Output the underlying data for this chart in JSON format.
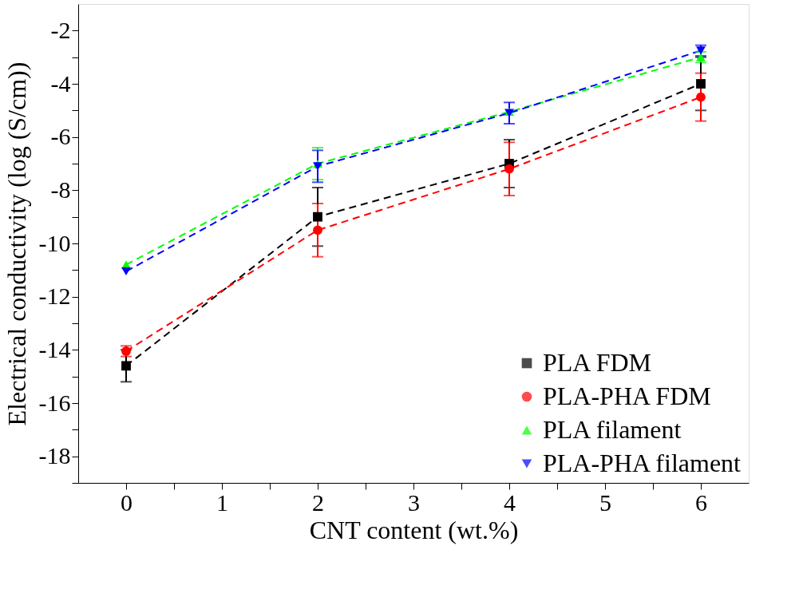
{
  "chart_data": {
    "type": "line",
    "xlabel": "CNT content (wt.%)",
    "ylabel": "Electrical conductivity (log (S/cm))",
    "x": [
      0,
      2,
      4,
      6
    ],
    "xlim": [
      -0.5,
      6.5
    ],
    "xticks": [
      0,
      {
        "value": 0.5,
        "label": null
      },
      1,
      {
        "value": 1.5,
        "label": null
      },
      2,
      {
        "value": 2.5,
        "label": null
      },
      3,
      {
        "value": 3.5,
        "label": null
      },
      4,
      {
        "value": 4.5,
        "label": null
      },
      5,
      {
        "value": 5.5,
        "label": null
      },
      6
    ],
    "ylim": [
      -19,
      -1
    ],
    "yticks": [
      {
        "value": -19,
        "label": null
      },
      -18,
      {
        "value": -17,
        "label": null
      },
      -16,
      {
        "value": -15,
        "label": null
      },
      -14,
      {
        "value": -13,
        "label": null
      },
      -12,
      {
        "value": -11,
        "label": null
      },
      -10,
      {
        "value": -9,
        "label": null
      },
      -8,
      {
        "value": -7,
        "label": null
      },
      -6,
      {
        "value": -5,
        "label": null
      },
      -4,
      {
        "value": -3,
        "label": null
      },
      -2
    ],
    "series": [
      {
        "name": "PLA FDM",
        "color": "#000000",
        "marker": "square",
        "values": [
          -14.6,
          -9.0,
          -7.0,
          -4.0
        ],
        "errors": [
          0.6,
          1.1,
          0.9,
          1.0
        ]
      },
      {
        "name": "PLA-PHA FDM",
        "color": "#ff0000",
        "marker": "circle",
        "values": [
          -14.05,
          -9.5,
          -7.2,
          -4.5
        ],
        "errors": [
          0.2,
          1.0,
          1.0,
          0.9
        ]
      },
      {
        "name": "PLA filament",
        "color": "#00ff00",
        "marker": "triangle",
        "values": [
          -10.8,
          -7.0,
          -5.05,
          -3.0
        ],
        "errors": [
          null,
          0.6,
          null,
          0.2
        ]
      },
      {
        "name": "PLA-PHA filament",
        "color": "#0000ff",
        "marker": "triangle-down",
        "values": [
          -11.05,
          -7.1,
          -5.1,
          -2.75
        ],
        "errors": [
          null,
          0.6,
          0.4,
          0.2
        ]
      }
    ],
    "line_style": "dashed",
    "grid": false,
    "legend": "bottom right"
  }
}
